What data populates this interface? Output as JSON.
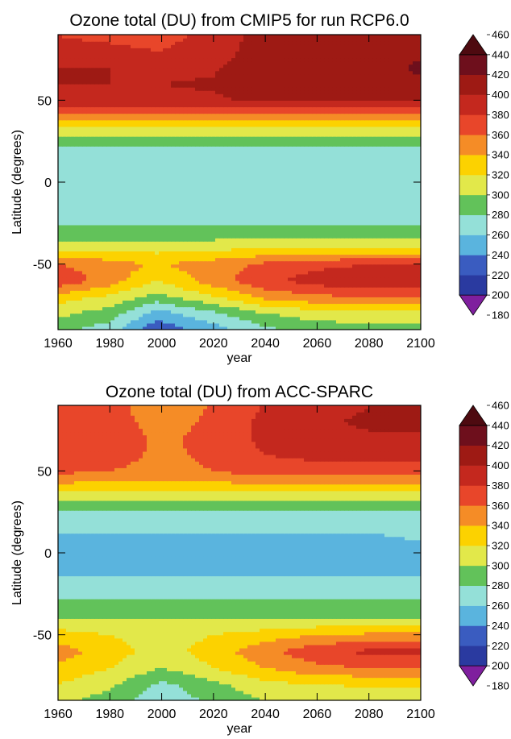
{
  "colorbar": {
    "levels": [
      180,
      200,
      220,
      240,
      260,
      280,
      300,
      320,
      340,
      360,
      380,
      400,
      420,
      440,
      460
    ],
    "colors": [
      "#7f1f9e",
      "#2a3aa0",
      "#3a5cc0",
      "#5ab4de",
      "#94e0d8",
      "#62c25a",
      "#e2e84a",
      "#fcd200",
      "#f58c26",
      "#e8462a",
      "#c4281e",
      "#9e1a14",
      "#6e0f1c",
      "#4e0a10"
    ]
  },
  "chart_data": [
    {
      "type": "contour",
      "title": "Ozone total (DU) from CMIP5 for run RCP6.0",
      "xlabel": "year",
      "ylabel": "Latitude (degrees)",
      "xlim": [
        1960,
        2100
      ],
      "ylim": [
        -90,
        90
      ],
      "xticks": [
        1960,
        1980,
        2000,
        2020,
        2040,
        2060,
        2080,
        2100
      ],
      "yticks": [
        -50,
        0,
        50
      ],
      "x": [
        1960,
        1980,
        1998,
        2020,
        2040,
        2060,
        2080,
        2100
      ],
      "y": [
        -90,
        -80,
        -70,
        -60,
        -50,
        -40,
        -30,
        -20,
        -10,
        0,
        10,
        20,
        30,
        40,
        50,
        60,
        70,
        80,
        90
      ],
      "values": [
        [
          285,
          270,
          225,
          250,
          275,
          288,
          292,
          292
        ],
        [
          305,
          290,
          250,
          275,
          300,
          310,
          312,
          312
        ],
        [
          330,
          315,
          292,
          318,
          345,
          355,
          360,
          360
        ],
        [
          375,
          350,
          320,
          350,
          375,
          390,
          395,
          395
        ],
        [
          360,
          350,
          338,
          350,
          365,
          375,
          380,
          380
        ],
        [
          315,
          312,
          312,
          315,
          318,
          320,
          320,
          320
        ],
        [
          285,
          285,
          285,
          285,
          285,
          285,
          285,
          285
        ],
        [
          270,
          270,
          270,
          270,
          270,
          270,
          270,
          270
        ],
        [
          268,
          268,
          268,
          268,
          268,
          268,
          268,
          268
        ],
        [
          267,
          267,
          267,
          267,
          267,
          267,
          267,
          267
        ],
        [
          268,
          268,
          268,
          268,
          268,
          268,
          268,
          268
        ],
        [
          272,
          272,
          272,
          272,
          272,
          272,
          272,
          272
        ],
        [
          305,
          305,
          305,
          305,
          305,
          305,
          305,
          305
        ],
        [
          345,
          345,
          345,
          348,
          348,
          348,
          348,
          348
        ],
        [
          395,
          395,
          395,
          398,
          402,
          405,
          405,
          405
        ],
        [
          400,
          400,
          400,
          402,
          408,
          410,
          412,
          418
        ],
        [
          400,
          400,
          395,
          398,
          412,
          412,
          415,
          422
        ],
        [
          385,
          385,
          380,
          390,
          412,
          410,
          412,
          418
        ],
        [
          380,
          375,
          372,
          385,
          410,
          405,
          408,
          412
        ]
      ]
    },
    {
      "type": "contour",
      "title": "Ozone total (DU) from ACC-SPARC",
      "xlabel": "year",
      "ylabel": "Latitude (degrees)",
      "xlim": [
        1960,
        2100
      ],
      "ylim": [
        -90,
        90
      ],
      "xticks": [
        1960,
        1980,
        2000,
        2020,
        2040,
        2060,
        2080,
        2100
      ],
      "yticks": [
        -50,
        0,
        50
      ],
      "x": [
        1960,
        1980,
        2000,
        2020,
        2040,
        2060,
        2080,
        2100
      ],
      "y": [
        -90,
        -80,
        -70,
        -60,
        -50,
        -40,
        -30,
        -20,
        -10,
        0,
        10,
        20,
        30,
        40,
        50,
        60,
        70,
        80,
        90
      ],
      "values": [
        [
          305,
          290,
          265,
          285,
          300,
          310,
          312,
          312
        ],
        [
          320,
          305,
          275,
          295,
          315,
          320,
          322,
          322
        ],
        [
          335,
          320,
          300,
          320,
          340,
          355,
          360,
          360
        ],
        [
          350,
          330,
          310,
          330,
          355,
          375,
          385,
          385
        ],
        [
          330,
          320,
          310,
          320,
          330,
          340,
          345,
          345
        ],
        [
          300,
          300,
          300,
          300,
          300,
          300,
          300,
          300
        ],
        [
          285,
          285,
          285,
          285,
          285,
          285,
          285,
          285
        ],
        [
          265,
          265,
          265,
          265,
          265,
          265,
          265,
          265
        ],
        [
          255,
          255,
          255,
          255,
          255,
          255,
          255,
          255
        ],
        [
          252,
          252,
          252,
          252,
          252,
          252,
          252,
          252
        ],
        [
          258,
          258,
          258,
          258,
          258,
          258,
          258,
          262
        ],
        [
          268,
          268,
          268,
          268,
          268,
          268,
          268,
          268
        ],
        [
          290,
          290,
          290,
          290,
          290,
          290,
          290,
          290
        ],
        [
          330,
          330,
          330,
          330,
          330,
          330,
          330,
          330
        ],
        [
          365,
          360,
          352,
          360,
          370,
          372,
          372,
          372
        ],
        [
          375,
          370,
          355,
          365,
          380,
          385,
          385,
          385
        ],
        [
          378,
          372,
          355,
          368,
          385,
          395,
          398,
          398
        ],
        [
          375,
          370,
          350,
          365,
          385,
          398,
          402,
          402
        ],
        [
          372,
          368,
          345,
          362,
          382,
          395,
          400,
          400
        ]
      ]
    }
  ]
}
